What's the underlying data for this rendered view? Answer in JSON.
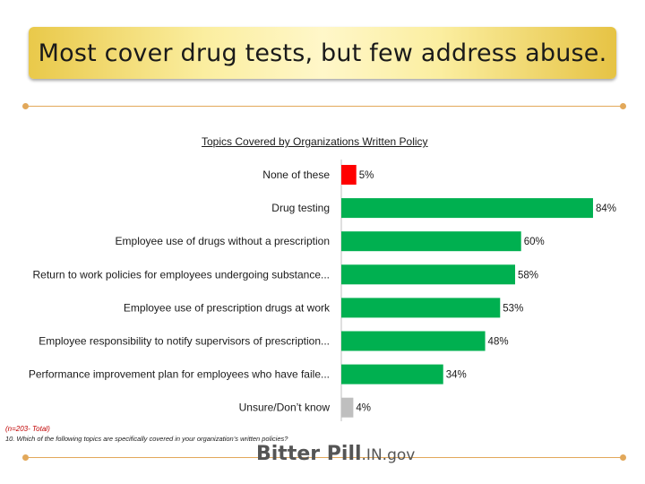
{
  "header": {
    "title": "Most cover drug tests, but few address abuse."
  },
  "chart_data": {
    "type": "bar",
    "orientation": "horizontal",
    "title": "Topics Covered by Organizations Written Policy",
    "categories": [
      "None of these",
      "Drug testing",
      "Employee use of drugs without a prescription",
      "Return to work policies for employees undergoing substance...",
      "Employee use of prescription drugs at work",
      "Employee responsibility to notify supervisors of prescription...",
      "Performance improvement plan for employees who have faile...",
      "Unsure/Don’t know"
    ],
    "values": [
      5,
      84,
      60,
      58,
      53,
      48,
      34,
      4
    ],
    "value_labels": [
      "5%",
      "84%",
      "60%",
      "58%",
      "53%",
      "48%",
      "34%",
      "4%"
    ],
    "bar_colors": [
      "#ff0000",
      "#00b050",
      "#00b050",
      "#00b050",
      "#00b050",
      "#00b050",
      "#00b050",
      "#bfbfbf"
    ],
    "xlim": [
      0,
      85
    ],
    "grid": false,
    "xlabel": "",
    "ylabel": ""
  },
  "footnote": {
    "n": "(n=203- Total)",
    "question": "10. Which of the following topics are specifically covered in your organization’s written policies?"
  },
  "logo": {
    "main": "Bitter Pill",
    "suffix": ".IN.gov"
  },
  "colors": {
    "rule": "#e2a85a",
    "banner": "#f7e37a"
  }
}
